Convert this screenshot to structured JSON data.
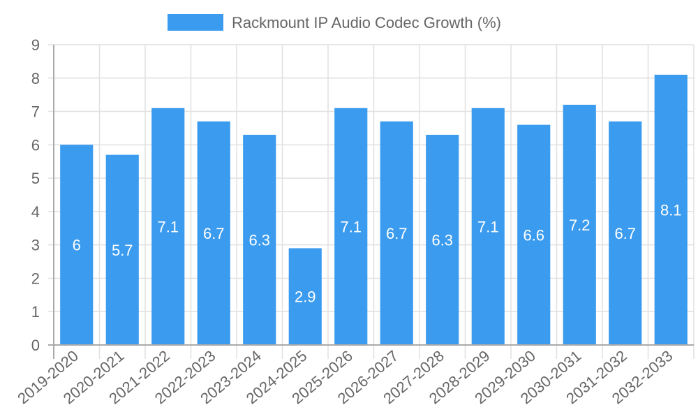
{
  "chart_data": {
    "type": "bar",
    "title": "",
    "legend": [
      "Rackmount IP Audio Codec Growth (%)"
    ],
    "legend_position": "top",
    "xlabel": "",
    "ylabel": "",
    "categories": [
      "2019-2020",
      "2020-2021",
      "2021-2022",
      "2022-2023",
      "2023-2024",
      "2024-2025",
      "2025-2026",
      "2026-2027",
      "2027-2028",
      "2028-2029",
      "2029-2030",
      "2030-2031",
      "2031-2032",
      "2032-2033"
    ],
    "series": [
      {
        "name": "Rackmount IP Audio Codec Growth (%)",
        "values": [
          6,
          5.7,
          7.1,
          6.7,
          6.3,
          2.9,
          7.1,
          6.7,
          6.3,
          7.1,
          6.6,
          7.2,
          6.7,
          8.1
        ]
      }
    ],
    "ylim": [
      0,
      9
    ],
    "yticks": [
      0,
      1,
      2,
      3,
      4,
      5,
      6,
      7,
      8,
      9
    ],
    "grid": true,
    "data_labels": true,
    "bar_color": "#3a9bef"
  }
}
